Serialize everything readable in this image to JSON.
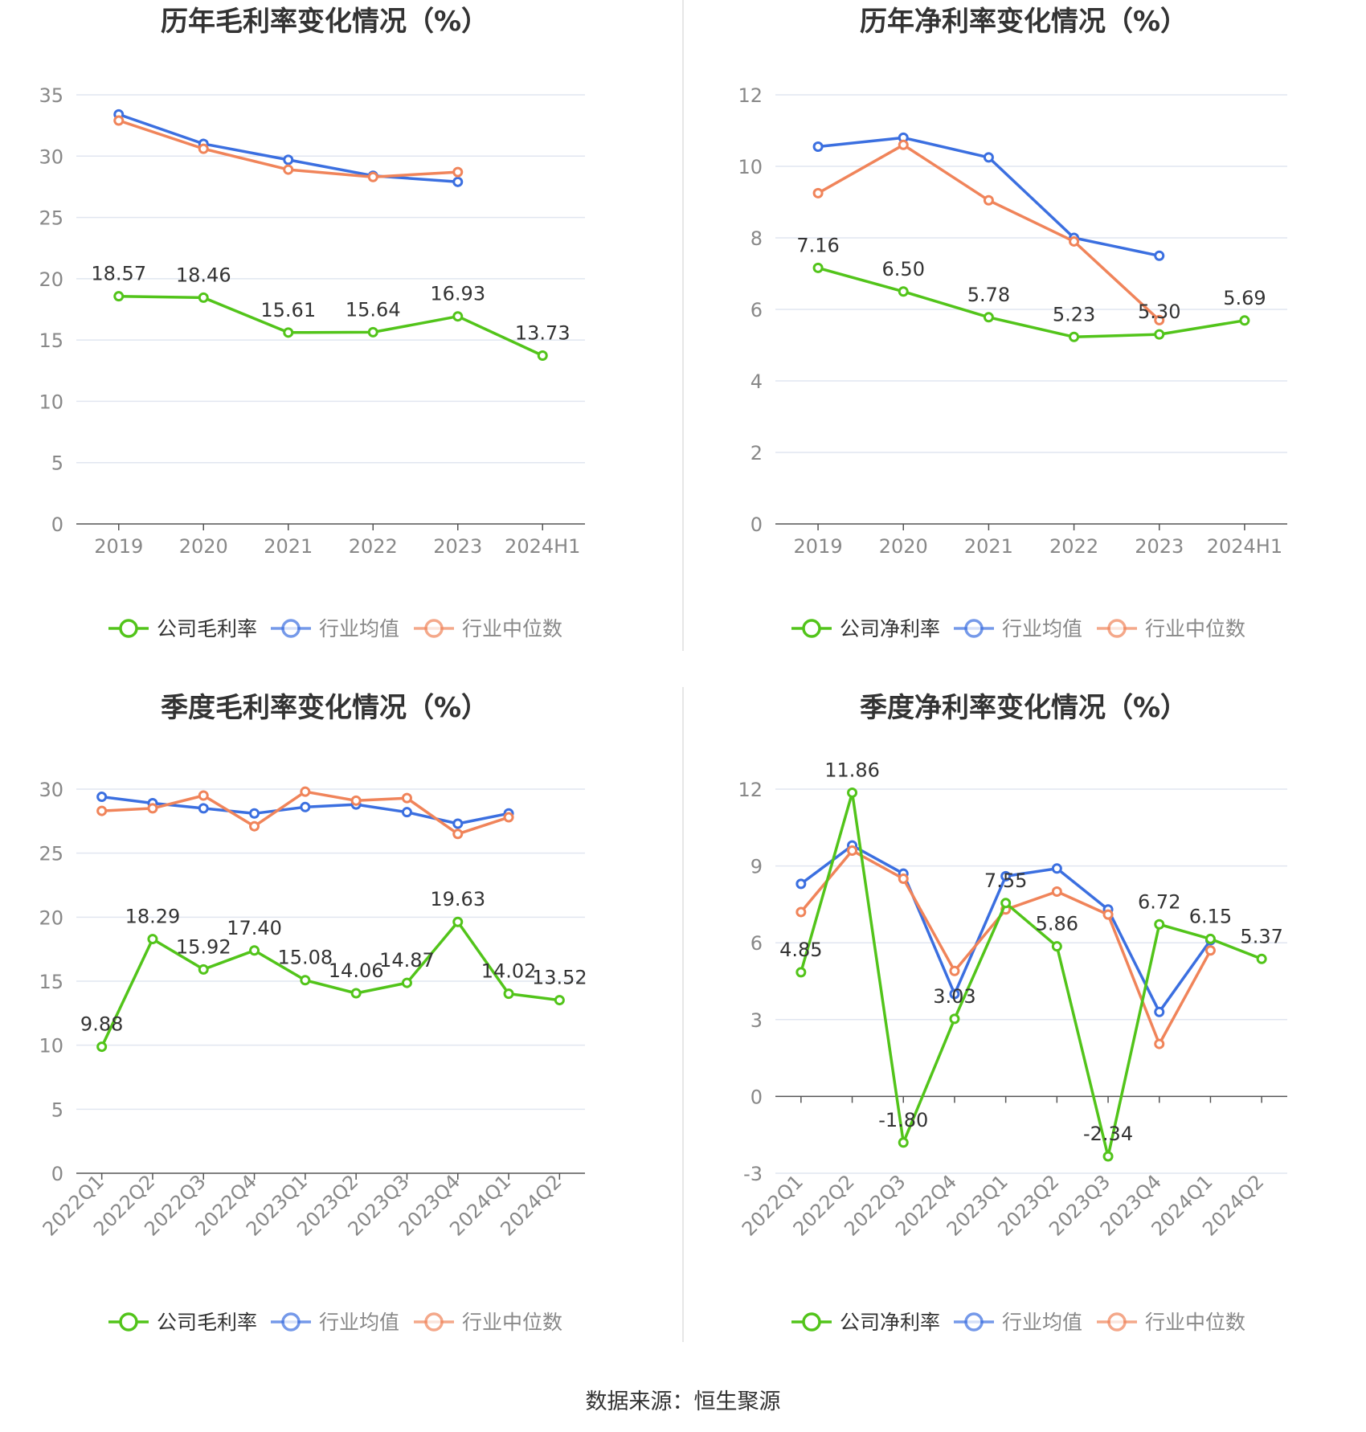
{
  "colors": {
    "company": "#52c41a",
    "average": "#3b6fe0",
    "median": "#f0845a",
    "grid": "#e1e6f0",
    "axis": "#555555",
    "tick_text": "#888888",
    "label_text": "#333333",
    "divider": "#e6e6e6"
  },
  "source": "数据来源：恒生聚源",
  "chart_data": [
    {
      "type": "line",
      "title": "历年毛利率变化情况（%）",
      "categories": [
        "2019",
        "2020",
        "2021",
        "2022",
        "2023",
        "2024H1"
      ],
      "ylim": [
        0,
        35
      ],
      "yticks": [
        0,
        5,
        10,
        15,
        20,
        25,
        30,
        35
      ],
      "x_label_rotation": 0,
      "series": [
        {
          "key": "company",
          "name": "公司毛利率",
          "values": [
            18.57,
            18.46,
            15.61,
            15.64,
            16.93,
            13.73
          ],
          "labels": [
            "18.57",
            "18.46",
            "15.61",
            "15.64",
            "16.93",
            "13.73"
          ]
        },
        {
          "key": "average",
          "name": "行业均值",
          "values": [
            33.4,
            31.0,
            29.7,
            28.4,
            27.9,
            null
          ]
        },
        {
          "key": "median",
          "name": "行业中位数",
          "values": [
            32.9,
            30.6,
            28.9,
            28.3,
            28.7,
            null
          ]
        }
      ]
    },
    {
      "type": "line",
      "title": "历年净利率变化情况（%）",
      "categories": [
        "2019",
        "2020",
        "2021",
        "2022",
        "2023",
        "2024H1"
      ],
      "ylim": [
        0,
        12
      ],
      "yticks": [
        0,
        2,
        4,
        6,
        8,
        10,
        12
      ],
      "x_label_rotation": 0,
      "series": [
        {
          "key": "company",
          "name": "公司净利率",
          "values": [
            7.16,
            6.5,
            5.78,
            5.23,
            5.3,
            5.69
          ],
          "labels": [
            "7.16",
            "6.50",
            "5.78",
            "5.23",
            "5.30",
            "5.69"
          ]
        },
        {
          "key": "average",
          "name": "行业均值",
          "values": [
            10.55,
            10.8,
            10.25,
            8.0,
            7.5,
            null
          ]
        },
        {
          "key": "median",
          "name": "行业中位数",
          "values": [
            9.25,
            10.6,
            9.05,
            7.9,
            5.7,
            null
          ]
        }
      ]
    },
    {
      "type": "line",
      "title": "季度毛利率变化情况（%）",
      "categories": [
        "2022Q1",
        "2022Q2",
        "2022Q3",
        "2022Q4",
        "2023Q1",
        "2023Q2",
        "2023Q3",
        "2023Q4",
        "2024Q1",
        "2024Q2"
      ],
      "ylim": [
        0,
        30
      ],
      "yticks": [
        0,
        5,
        10,
        15,
        20,
        25,
        30
      ],
      "x_label_rotation": -45,
      "series": [
        {
          "key": "company",
          "name": "公司毛利率",
          "values": [
            9.88,
            18.29,
            15.92,
            17.4,
            15.08,
            14.06,
            14.87,
            19.63,
            14.02,
            13.52
          ],
          "labels": [
            "9.88",
            "18.29",
            "15.92",
            "17.40",
            "15.08",
            "14.06",
            "14.87",
            "19.63",
            "14.02",
            "13.52"
          ]
        },
        {
          "key": "average",
          "name": "行业均值",
          "values": [
            29.4,
            28.9,
            28.5,
            28.1,
            28.6,
            28.8,
            28.2,
            27.3,
            28.1,
            null
          ]
        },
        {
          "key": "median",
          "name": "行业中位数",
          "values": [
            28.3,
            28.5,
            29.5,
            27.1,
            29.8,
            29.1,
            29.3,
            26.5,
            27.8,
            null
          ]
        }
      ]
    },
    {
      "type": "line",
      "title": "季度净利率变化情况（%）",
      "categories": [
        "2022Q1",
        "2022Q2",
        "2022Q3",
        "2022Q4",
        "2023Q1",
        "2023Q2",
        "2023Q3",
        "2023Q4",
        "2024Q1",
        "2024Q2"
      ],
      "ylim": [
        -3,
        12
      ],
      "yticks": [
        -3,
        0,
        3,
        6,
        9,
        12
      ],
      "x_label_rotation": -45,
      "series": [
        {
          "key": "company",
          "name": "公司净利率",
          "values": [
            4.85,
            11.86,
            -1.8,
            3.03,
            7.55,
            5.86,
            -2.34,
            6.72,
            6.15,
            5.37
          ],
          "labels": [
            "4.85",
            "11.86",
            "-1.80",
            "3.03",
            "7.55",
            "5.86",
            "-2.34",
            "6.72",
            "6.15",
            "5.37"
          ]
        },
        {
          "key": "average",
          "name": "行业均值",
          "values": [
            8.3,
            9.8,
            8.7,
            4.0,
            8.6,
            8.9,
            7.3,
            3.3,
            6.1,
            null
          ]
        },
        {
          "key": "median",
          "name": "行业中位数",
          "values": [
            7.2,
            9.6,
            8.5,
            4.9,
            7.3,
            8.0,
            7.1,
            2.05,
            5.7,
            null
          ]
        }
      ]
    }
  ]
}
